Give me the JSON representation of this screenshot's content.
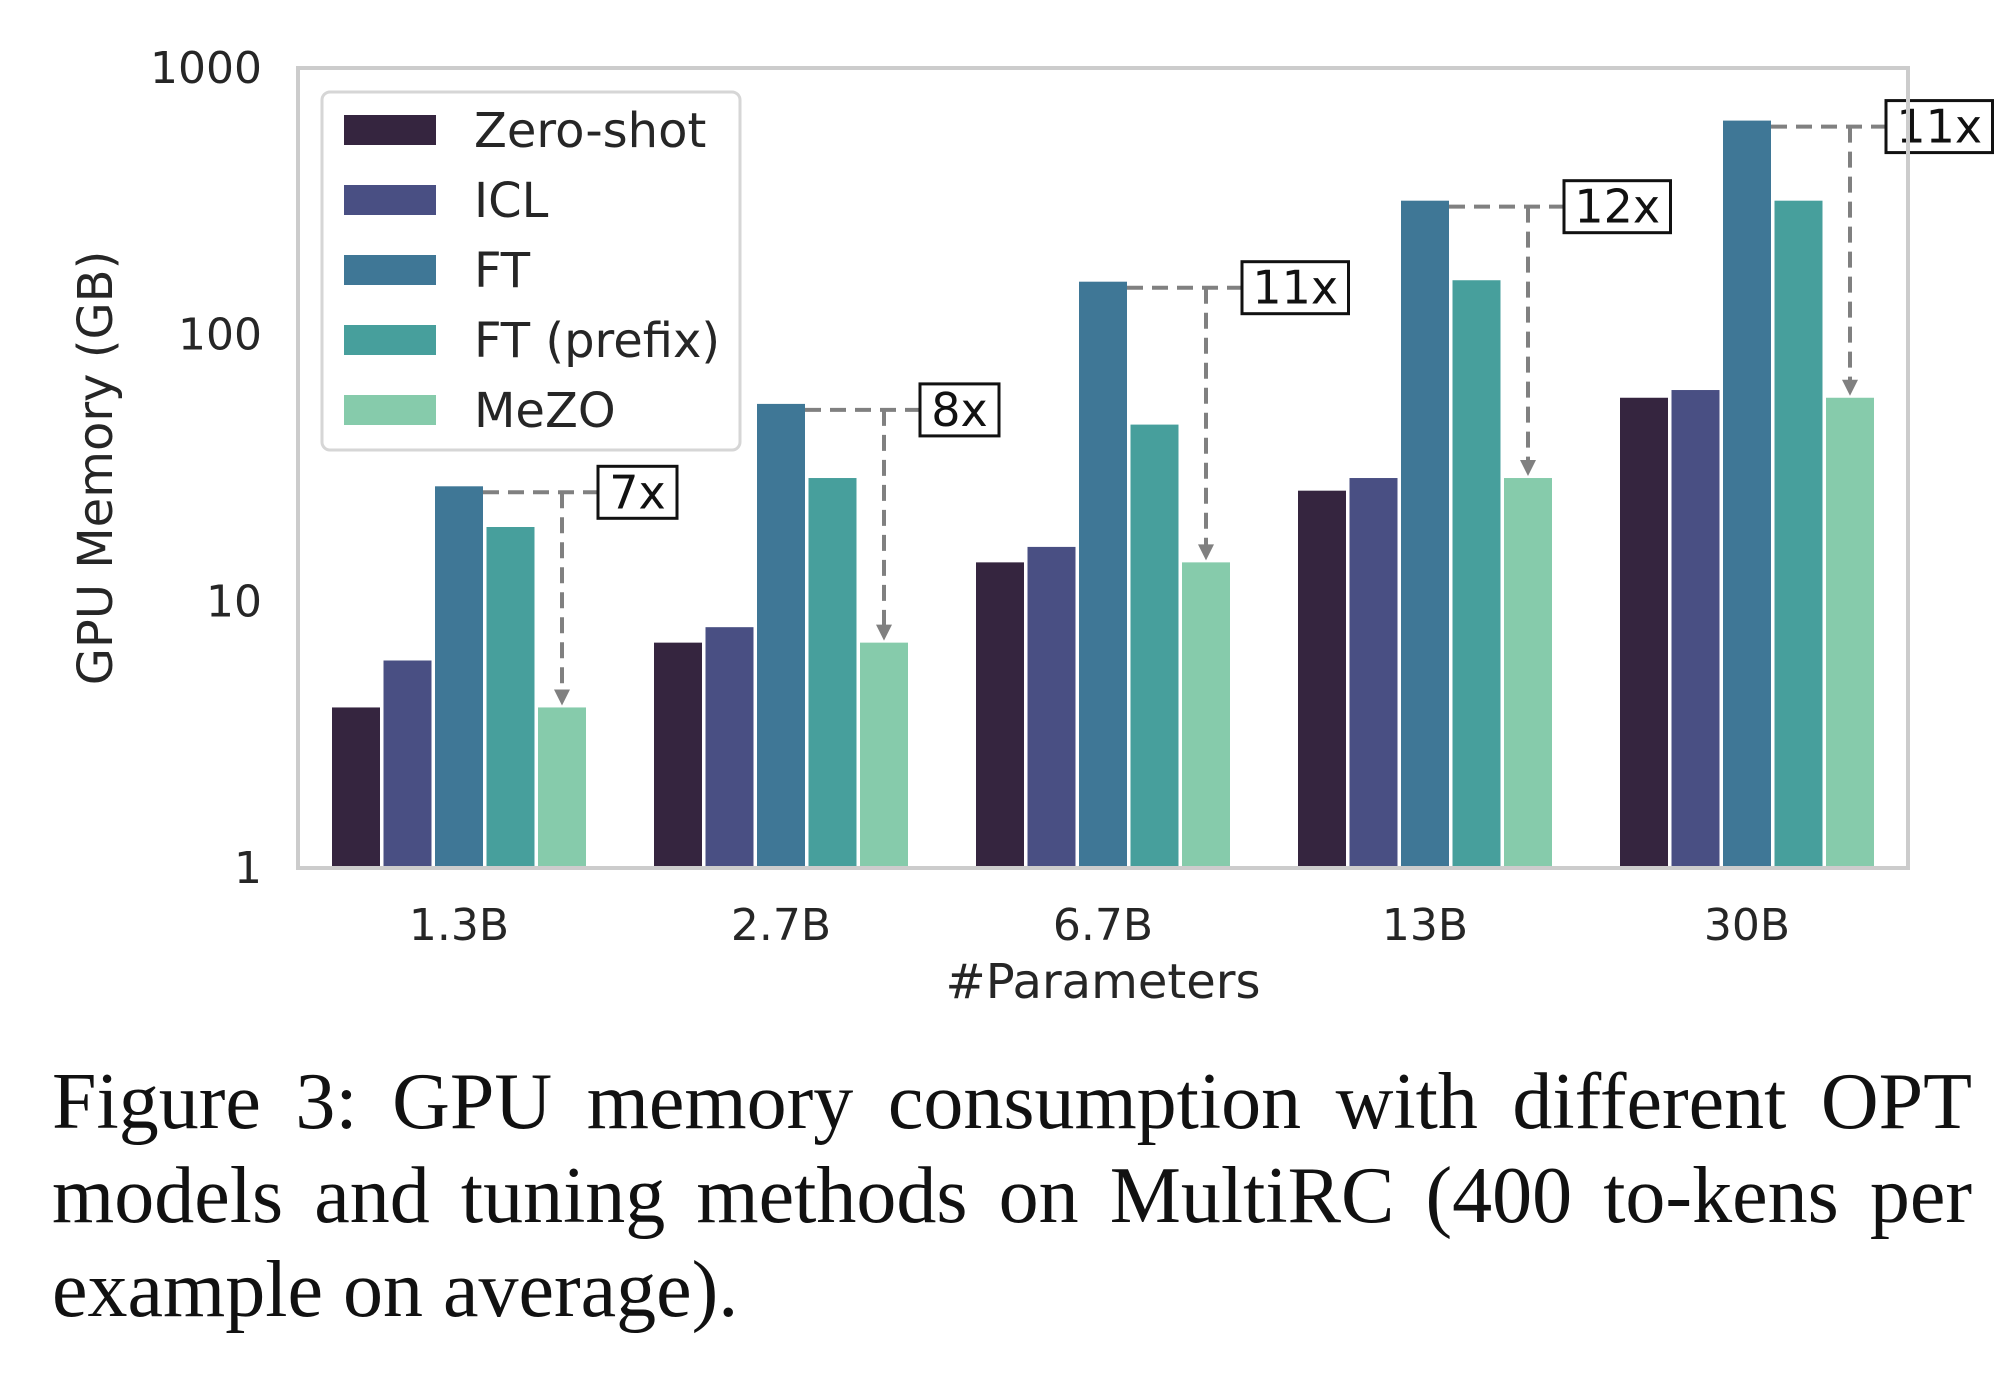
{
  "chart_data": {
    "type": "bar",
    "yscale": "log",
    "ylim": [
      1,
      1000
    ],
    "yticks": [
      1,
      10,
      100,
      1000
    ],
    "ytick_labels": [
      "1",
      "10",
      "100",
      "1000"
    ],
    "xlabel": "#Parameters",
    "ylabel": "GPU Memory (GB)",
    "categories": [
      "1.3B",
      "2.7B",
      "6.7B",
      "13B",
      "30B"
    ],
    "series": [
      {
        "name": "Zero-shot",
        "color": "#35253f",
        "values": [
          4,
          7,
          14,
          26,
          58
        ]
      },
      {
        "name": "ICL",
        "color": "#494f83",
        "values": [
          6,
          8,
          16,
          29,
          62
        ]
      },
      {
        "name": "FT",
        "color": "#3f7796",
        "values": [
          27,
          55,
          158,
          318,
          635
        ]
      },
      {
        "name": "FT (prefix)",
        "color": "#479f9c",
        "values": [
          19,
          29,
          46,
          160,
          318
        ]
      },
      {
        "name": "MeZO",
        "color": "#86cbab",
        "values": [
          4,
          7,
          14,
          29,
          58
        ]
      }
    ],
    "annotations": [
      "7x",
      "8x",
      "11x",
      "12x",
      "11x"
    ],
    "legend_position": "top-left"
  },
  "caption": "Figure 3:  GPU memory consumption with different OPT models and tuning methods on MultiRC (400 to-kens per example on average)."
}
